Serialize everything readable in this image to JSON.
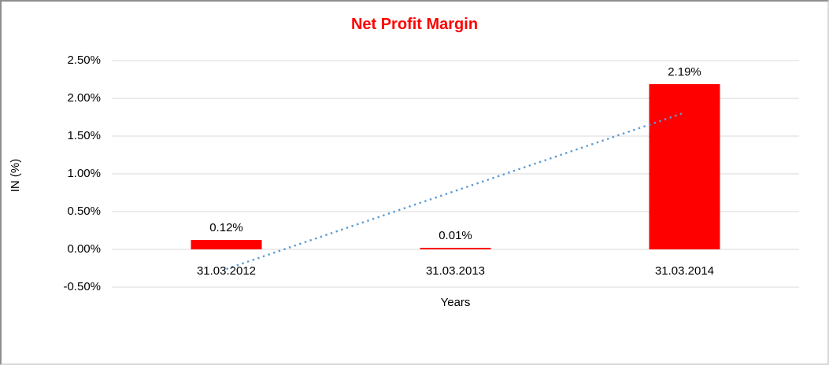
{
  "chart_data": {
    "type": "bar",
    "title": "Net Profit Margin",
    "title_color": "#ff0000",
    "xlabel": "Years",
    "ylabel": "IN (%)",
    "categories": [
      "31.03.2012",
      "31.03.2013",
      "31.03.2014"
    ],
    "values": [
      0.12,
      0.01,
      2.19
    ],
    "value_labels": [
      "0.12%",
      "0.01%",
      "2.19%"
    ],
    "bar_color": "#ff0000",
    "ylim": [
      -0.5,
      2.5
    ],
    "ytick_step": 0.5,
    "ytick_labels": [
      "2.50%",
      "2.00%",
      "1.50%",
      "1.00%",
      "0.50%",
      "0.00%",
      "-0.50%"
    ],
    "grid": true,
    "gridline_color": "#d9d9d9",
    "legend": "none",
    "trendline": {
      "type": "linear",
      "style": "dotted",
      "color": "#5b9bd5",
      "start_value": -0.26,
      "end_value": 1.81
    }
  }
}
